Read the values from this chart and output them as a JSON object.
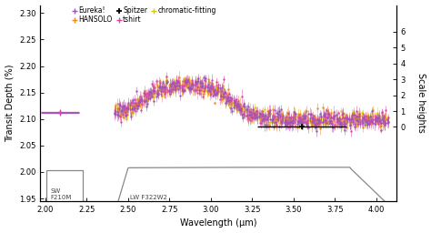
{
  "xlabel": "Wavelength (μm)",
  "ylabel": "Transit Depth (%)",
  "ylabel_right": "Scale heights",
  "xlim": [
    1.97,
    4.12
  ],
  "ylim": [
    1.945,
    2.315
  ],
  "yticks": [
    1.95,
    2.0,
    2.05,
    2.1,
    2.15,
    2.2,
    2.25,
    2.3
  ],
  "yticks_right": [
    0,
    1,
    2,
    3,
    4,
    5,
    6
  ],
  "xticks": [
    2.0,
    2.25,
    2.5,
    2.75,
    3.0,
    3.25,
    3.5,
    3.75,
    4.0
  ],
  "colors": {
    "eureka": "#9955bb",
    "tshirt": "#dd44aa",
    "hansolo": "#ee8822",
    "chromatic": "#ddcc00",
    "spitzer": "#000000",
    "filter_curve": "#888888"
  },
  "spitzer_x": 3.55,
  "spitzer_y": 2.085,
  "spitzer_xerr": 0.27,
  "spitzer_yerr": 0.005,
  "sw_eureka_x": 2.09,
  "sw_eureka_y": 2.112,
  "sw_eureka_xerr": 0.115,
  "sw_eureka_yerr": 0.003,
  "sw_tshirt_y": 2.114,
  "sw_tshirt_xerr": 0.115,
  "sw_tshirt_yerr": 0.003,
  "background_color": "#ffffff",
  "ref_depth_for_sh": 2.085,
  "depth_per_sh": 0.03
}
